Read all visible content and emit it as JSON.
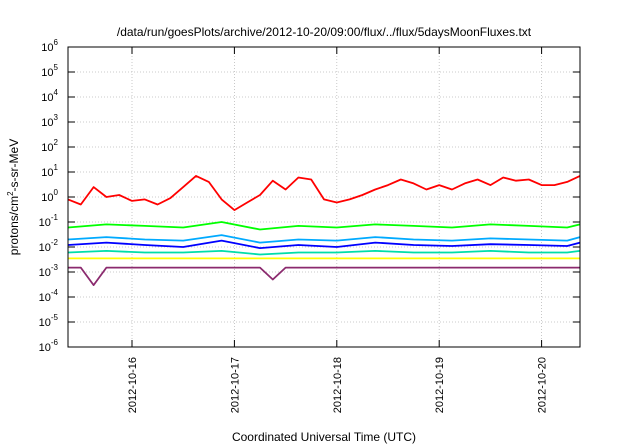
{
  "chart_data": {
    "type": "line",
    "title": "/data/run/goesPlots/archive/2012-10-20/09:00/flux/../flux/5daysMoonFluxes.txt",
    "xlabel": "Coordinated Universal Time (UTC)",
    "ylabel": {
      "base": "protons/cm",
      "sup": "2",
      "rest": "-s-sr-MeV"
    },
    "yscale": "log",
    "ylim": [
      1e-06,
      1000000.0
    ],
    "yticks": [
      {
        "base": "10",
        "exp": "6"
      },
      {
        "base": "10",
        "exp": "5"
      },
      {
        "base": "10",
        "exp": "4"
      },
      {
        "base": "10",
        "exp": "3"
      },
      {
        "base": "10",
        "exp": "2"
      },
      {
        "base": "10",
        "exp": "1"
      },
      {
        "base": "10",
        "exp": "0"
      },
      {
        "base": "10",
        "exp": "-1"
      },
      {
        "base": "10",
        "exp": "-2"
      },
      {
        "base": "10",
        "exp": "-3"
      },
      {
        "base": "10",
        "exp": "-4"
      },
      {
        "base": "10",
        "exp": "-5"
      },
      {
        "base": "10",
        "exp": "-6"
      }
    ],
    "xlim": [
      "2012-10-15 09:00",
      "2012-10-20 09:00"
    ],
    "xticks": [
      "2012-10-16",
      "2012-10-17",
      "2012-10-18",
      "2012-10-19",
      "2012-10-20"
    ],
    "grid": true,
    "legend": "none",
    "series": [
      {
        "color": "#ff0000",
        "x": [
          "2012-10-15 09:00",
          "2012-10-15 12:00",
          "2012-10-15 15:00",
          "2012-10-15 18:00",
          "2012-10-15 21:00",
          "2012-10-16 00:00",
          "2012-10-16 03:00",
          "2012-10-16 06:00",
          "2012-10-16 09:00",
          "2012-10-16 12:00",
          "2012-10-16 15:00",
          "2012-10-16 18:00",
          "2012-10-16 21:00",
          "2012-10-17 00:00",
          "2012-10-17 03:00",
          "2012-10-17 06:00",
          "2012-10-17 09:00",
          "2012-10-17 12:00",
          "2012-10-17 15:00",
          "2012-10-17 18:00",
          "2012-10-17 21:00",
          "2012-10-18 00:00",
          "2012-10-18 03:00",
          "2012-10-18 06:00",
          "2012-10-18 09:00",
          "2012-10-18 12:00",
          "2012-10-18 15:00",
          "2012-10-18 18:00",
          "2012-10-18 21:00",
          "2012-10-19 00:00",
          "2012-10-19 03:00",
          "2012-10-19 06:00",
          "2012-10-19 09:00",
          "2012-10-19 12:00",
          "2012-10-19 15:00",
          "2012-10-19 18:00",
          "2012-10-19 21:00",
          "2012-10-20 00:00",
          "2012-10-20 03:00",
          "2012-10-20 06:00",
          "2012-10-20 09:00"
        ],
        "values": [
          0.8,
          0.5,
          2.5,
          1.0,
          1.2,
          0.7,
          0.8,
          0.5,
          0.9,
          2.5,
          7.0,
          4.0,
          0.8,
          0.3,
          0.6,
          1.2,
          4.5,
          2.0,
          6.0,
          5.0,
          0.8,
          0.6,
          0.8,
          1.2,
          2.0,
          3.0,
          5.0,
          3.5,
          2.0,
          3.0,
          2.0,
          3.5,
          5.0,
          3.0,
          6.0,
          4.5,
          5.0,
          3.0,
          3.0,
          4.0,
          7.0
        ]
      },
      {
        "color": "#00ff00",
        "x": [
          "2012-10-15 09:00",
          "2012-10-15 18:00",
          "2012-10-16 03:00",
          "2012-10-16 12:00",
          "2012-10-16 21:00",
          "2012-10-17 06:00",
          "2012-10-17 15:00",
          "2012-10-18 00:00",
          "2012-10-18 09:00",
          "2012-10-18 18:00",
          "2012-10-19 03:00",
          "2012-10-19 12:00",
          "2012-10-19 21:00",
          "2012-10-20 06:00",
          "2012-10-20 09:00"
        ],
        "values": [
          0.06,
          0.08,
          0.07,
          0.06,
          0.1,
          0.05,
          0.07,
          0.06,
          0.08,
          0.07,
          0.06,
          0.08,
          0.07,
          0.06,
          0.08
        ]
      },
      {
        "color": "#00aaff",
        "x": [
          "2012-10-15 09:00",
          "2012-10-15 18:00",
          "2012-10-16 03:00",
          "2012-10-16 12:00",
          "2012-10-16 21:00",
          "2012-10-17 06:00",
          "2012-10-17 15:00",
          "2012-10-18 00:00",
          "2012-10-18 09:00",
          "2012-10-18 18:00",
          "2012-10-19 03:00",
          "2012-10-19 12:00",
          "2012-10-19 21:00",
          "2012-10-20 06:00",
          "2012-10-20 09:00"
        ],
        "values": [
          0.02,
          0.025,
          0.02,
          0.018,
          0.03,
          0.015,
          0.02,
          0.018,
          0.025,
          0.02,
          0.018,
          0.022,
          0.02,
          0.018,
          0.025
        ]
      },
      {
        "color": "#0000ff",
        "x": [
          "2012-10-15 09:00",
          "2012-10-15 18:00",
          "2012-10-16 03:00",
          "2012-10-16 12:00",
          "2012-10-16 21:00",
          "2012-10-17 06:00",
          "2012-10-17 15:00",
          "2012-10-18 00:00",
          "2012-10-18 09:00",
          "2012-10-18 18:00",
          "2012-10-19 03:00",
          "2012-10-19 12:00",
          "2012-10-19 21:00",
          "2012-10-20 06:00",
          "2012-10-20 09:00"
        ],
        "values": [
          0.012,
          0.015,
          0.012,
          0.01,
          0.018,
          0.009,
          0.012,
          0.01,
          0.015,
          0.012,
          0.011,
          0.013,
          0.012,
          0.011,
          0.015
        ]
      },
      {
        "color": "#00ddaa",
        "x": [
          "2012-10-15 09:00",
          "2012-10-15 18:00",
          "2012-10-16 03:00",
          "2012-10-16 12:00",
          "2012-10-16 21:00",
          "2012-10-17 06:00",
          "2012-10-17 15:00",
          "2012-10-18 00:00",
          "2012-10-18 09:00",
          "2012-10-18 18:00",
          "2012-10-19 03:00",
          "2012-10-19 12:00",
          "2012-10-19 21:00",
          "2012-10-20 06:00",
          "2012-10-20 09:00"
        ],
        "values": [
          0.006,
          0.007,
          0.006,
          0.006,
          0.007,
          0.005,
          0.006,
          0.006,
          0.007,
          0.006,
          0.006,
          0.007,
          0.006,
          0.006,
          0.007
        ]
      },
      {
        "color": "#ffff00",
        "x": [
          "2012-10-15 09:00",
          "2012-10-15 18:00",
          "2012-10-16 03:00",
          "2012-10-16 12:00",
          "2012-10-16 21:00",
          "2012-10-17 06:00",
          "2012-10-17 15:00",
          "2012-10-18 00:00",
          "2012-10-18 09:00",
          "2012-10-18 18:00",
          "2012-10-19 03:00",
          "2012-10-19 12:00",
          "2012-10-19 21:00",
          "2012-10-20 06:00",
          "2012-10-20 09:00"
        ],
        "values": [
          0.0035,
          0.0035,
          0.0035,
          0.0035,
          0.0035,
          0.0035,
          0.0035,
          0.0035,
          0.0035,
          0.0035,
          0.0035,
          0.0035,
          0.0035,
          0.0035,
          0.0035
        ]
      },
      {
        "color": "#8b2a6e",
        "x": [
          "2012-10-15 09:00",
          "2012-10-15 12:00",
          "2012-10-15 15:00",
          "2012-10-15 18:00",
          "2012-10-16 00:00",
          "2012-10-16 06:00",
          "2012-10-16 12:00",
          "2012-10-16 18:00",
          "2012-10-17 00:00",
          "2012-10-17 06:00",
          "2012-10-17 09:00",
          "2012-10-17 12:00",
          "2012-10-17 18:00",
          "2012-10-18 00:00",
          "2012-10-18 06:00",
          "2012-10-18 12:00",
          "2012-10-18 18:00",
          "2012-10-19 00:00",
          "2012-10-19 06:00",
          "2012-10-19 12:00",
          "2012-10-19 18:00",
          "2012-10-20 00:00",
          "2012-10-20 06:00",
          "2012-10-20 09:00"
        ],
        "values": [
          0.0015,
          0.0015,
          0.0003,
          0.0015,
          0.0015,
          0.0015,
          0.0015,
          0.0015,
          0.0015,
          0.0015,
          0.0005,
          0.0015,
          0.0015,
          0.0015,
          0.0015,
          0.0015,
          0.0015,
          0.0015,
          0.0015,
          0.0015,
          0.0015,
          0.0015,
          0.0015,
          0.0015
        ]
      }
    ]
  }
}
